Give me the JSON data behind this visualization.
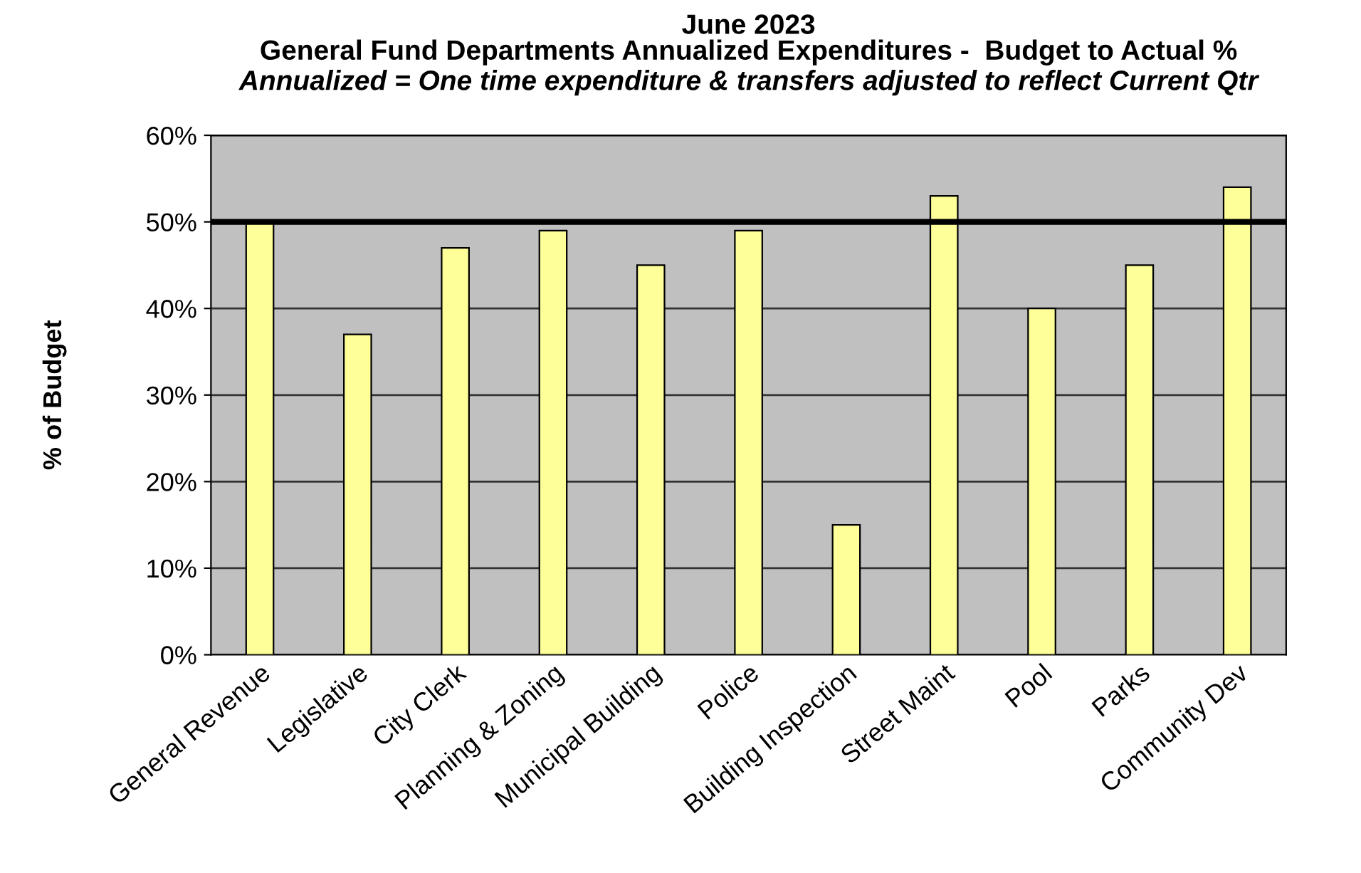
{
  "chart_data": {
    "type": "bar",
    "title": "June 2023\nGeneral Fund Departments Annualized Expenditures -  Budget to Actual %",
    "subtitle": "Annualized = One time expenditure & transfers adjusted to reflect Current Qtr",
    "ylabel": "% of Budget",
    "categories": [
      "General Revenue",
      "Legislative",
      "City Clerk",
      "Planning & Zoning",
      "Municipal Building",
      "Police",
      "Building Inspection",
      "Street Maint",
      "Pool",
      "Parks",
      "Community Dev"
    ],
    "values": [
      50,
      37,
      47,
      49,
      45,
      49,
      15,
      53,
      40,
      45,
      54
    ],
    "color": "#ffff99",
    "ylim": [
      0,
      60
    ],
    "yticks": [
      {
        "value": 0,
        "label": "0%"
      },
      {
        "value": 10,
        "label": "10%"
      },
      {
        "value": 20,
        "label": "20%"
      },
      {
        "value": 30,
        "label": "30%"
      },
      {
        "value": 40,
        "label": "40%"
      },
      {
        "value": 50,
        "label": "50%"
      },
      {
        "value": 60,
        "label": "60%"
      }
    ],
    "grid": "y",
    "ref_lines": [
      {
        "axis": "y",
        "value": 50,
        "color": "#000000",
        "line_style": "solid"
      }
    ]
  }
}
